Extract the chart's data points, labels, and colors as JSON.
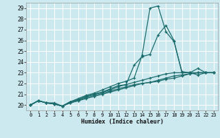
{
  "xlabel": "Humidex (Indice chaleur)",
  "bg_color": "#cce9f0",
  "grid_color": "#ffffff",
  "line_color": "#1a6b6b",
  "xlim": [
    -0.5,
    23.5
  ],
  "ylim": [
    19.5,
    29.5
  ],
  "xticks": [
    0,
    1,
    2,
    3,
    4,
    5,
    6,
    7,
    8,
    9,
    10,
    11,
    12,
    13,
    14,
    15,
    16,
    17,
    18,
    19,
    20,
    21,
    22,
    23
  ],
  "yticks": [
    20,
    21,
    22,
    23,
    24,
    25,
    26,
    27,
    28,
    29
  ],
  "lines": [
    {
      "x": [
        0,
        1,
        2,
        3,
        4,
        5,
        6,
        7,
        8,
        9,
        10,
        11,
        12,
        13,
        14,
        15,
        16,
        17,
        18,
        19,
        20,
        21,
        22,
        23
      ],
      "y": [
        20.0,
        20.4,
        20.2,
        20.2,
        19.9,
        20.3,
        20.6,
        20.9,
        21.1,
        21.4,
        21.7,
        22.0,
        22.2,
        22.5,
        24.6,
        29.0,
        29.2,
        26.8,
        25.9,
        23.1,
        23.0,
        23.4,
        23.0,
        23.0
      ]
    },
    {
      "x": [
        0,
        1,
        2,
        3,
        4,
        5,
        6,
        7,
        8,
        9,
        10,
        11,
        12,
        13,
        14,
        15,
        16,
        17,
        18,
        19,
        20,
        21,
        22,
        23
      ],
      "y": [
        20.0,
        20.4,
        20.2,
        20.1,
        19.9,
        20.3,
        20.5,
        20.8,
        21.0,
        21.2,
        21.5,
        21.8,
        21.9,
        23.7,
        24.5,
        24.7,
        26.5,
        27.4,
        26.0,
        23.0,
        23.0,
        22.8,
        23.0,
        23.0
      ]
    },
    {
      "x": [
        0,
        1,
        2,
        3,
        4,
        5,
        6,
        7,
        8,
        9,
        10,
        11,
        12,
        13,
        14,
        15,
        16,
        17,
        18,
        19,
        20,
        21,
        22,
        23
      ],
      "y": [
        20.0,
        20.4,
        20.2,
        20.1,
        19.9,
        20.3,
        20.5,
        20.8,
        21.0,
        21.2,
        21.4,
        21.7,
        21.9,
        22.1,
        22.3,
        22.5,
        22.7,
        22.9,
        23.0,
        23.0,
        23.0,
        23.0,
        23.0,
        23.0
      ]
    },
    {
      "x": [
        0,
        1,
        2,
        3,
        4,
        5,
        6,
        7,
        8,
        9,
        10,
        11,
        12,
        13,
        14,
        15,
        16,
        17,
        18,
        19,
        20,
        21,
        22,
        23
      ],
      "y": [
        20.0,
        20.4,
        20.2,
        20.1,
        19.9,
        20.2,
        20.4,
        20.7,
        20.9,
        21.1,
        21.3,
        21.5,
        21.7,
        21.9,
        22.0,
        22.1,
        22.3,
        22.5,
        22.7,
        22.8,
        22.9,
        23.0,
        23.0,
        23.0
      ]
    },
    {
      "x": [
        0,
        1,
        2,
        3,
        4,
        5,
        6,
        7,
        8,
        9,
        10,
        11,
        12,
        13,
        14,
        15,
        16,
        17,
        18,
        19,
        20,
        21,
        22,
        23
      ],
      "y": [
        20.0,
        20.4,
        20.2,
        20.1,
        19.9,
        20.2,
        20.4,
        20.6,
        20.8,
        21.0,
        21.2,
        21.4,
        21.6,
        21.8,
        22.0,
        22.1,
        22.2,
        22.4,
        22.5,
        22.7,
        22.9,
        23.0,
        23.0,
        23.0
      ]
    }
  ]
}
